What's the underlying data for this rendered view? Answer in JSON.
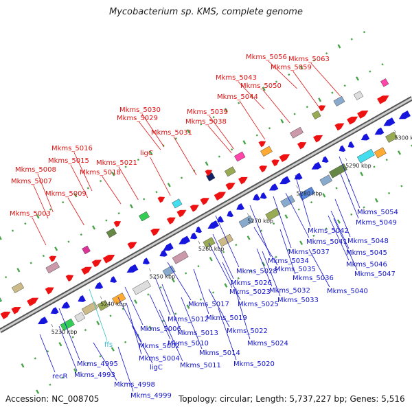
{
  "title": "Mycobacterium sp. KMS, complete genome",
  "footer": {
    "accession": "Accession: NC_008705",
    "summary": "Topology: circular; Length: 5,737,227 bp; Genes: 5,516"
  },
  "colors": {
    "upper_label": "#dd1111",
    "lower_label": "#1111cc",
    "rna_label": "#33bbcc",
    "forward_gene": "#ee1111",
    "reverse_gene": "#1515dd",
    "backbone": "#888888",
    "tick": "#339933"
  },
  "ruler": [
    "5230 kbp",
    "5240 kbp",
    "5250 kbp",
    "5260 kbp",
    "5270 kbp",
    "5280 kbp",
    "5290 kbp",
    "5300 kbp"
  ],
  "upper_labels": [
    "Mkms_5003",
    "Mkms_5007",
    "Mkms_5008",
    "Mkms_5009",
    "Mkms_5015",
    "Mkms_5016",
    "Mkms_5018",
    "Mkms_5021",
    "ligC",
    "Mkms_5029",
    "Mkms_5030",
    "Mkms_5031",
    "Mkms_5038",
    "Mkms_5039",
    "Mkms_5044",
    "Mkms_5043",
    "Mkms_5050",
    "Mkms_5059",
    "Mkms_5056",
    "Mkms_5063"
  ],
  "lower_labels": [
    "recR",
    "Mkms_4993",
    "Mkms_4995",
    "Mkms_4998",
    "Mkms_4999",
    "ffs",
    "ligC",
    "Mkms_5002",
    "Mkms_5004",
    "Mkms_5006",
    "Mkms_5010",
    "Mkms_5011",
    "Mkms_5012",
    "Mkms_5013",
    "Mkms_5014",
    "Mkms_5017",
    "Mkms_5019",
    "Mkms_5020",
    "Mkms_5022",
    "Mkms_5023",
    "Mkms_5024",
    "Mkms_5025",
    "Mkms_5026",
    "Mkms_5028",
    "Mkms_5032",
    "Mkms_5033",
    "Mkms_5034",
    "Mkms_5035",
    "Mkms_5036",
    "Mkms_5037",
    "Mkms_5040",
    "Mkms_5041",
    "Mkms_5042",
    "Mkms_5045",
    "Mkms_5046",
    "Mkms_5047",
    "Mkms_5048",
    "Mkms_5049",
    "Mkms_5054"
  ]
}
